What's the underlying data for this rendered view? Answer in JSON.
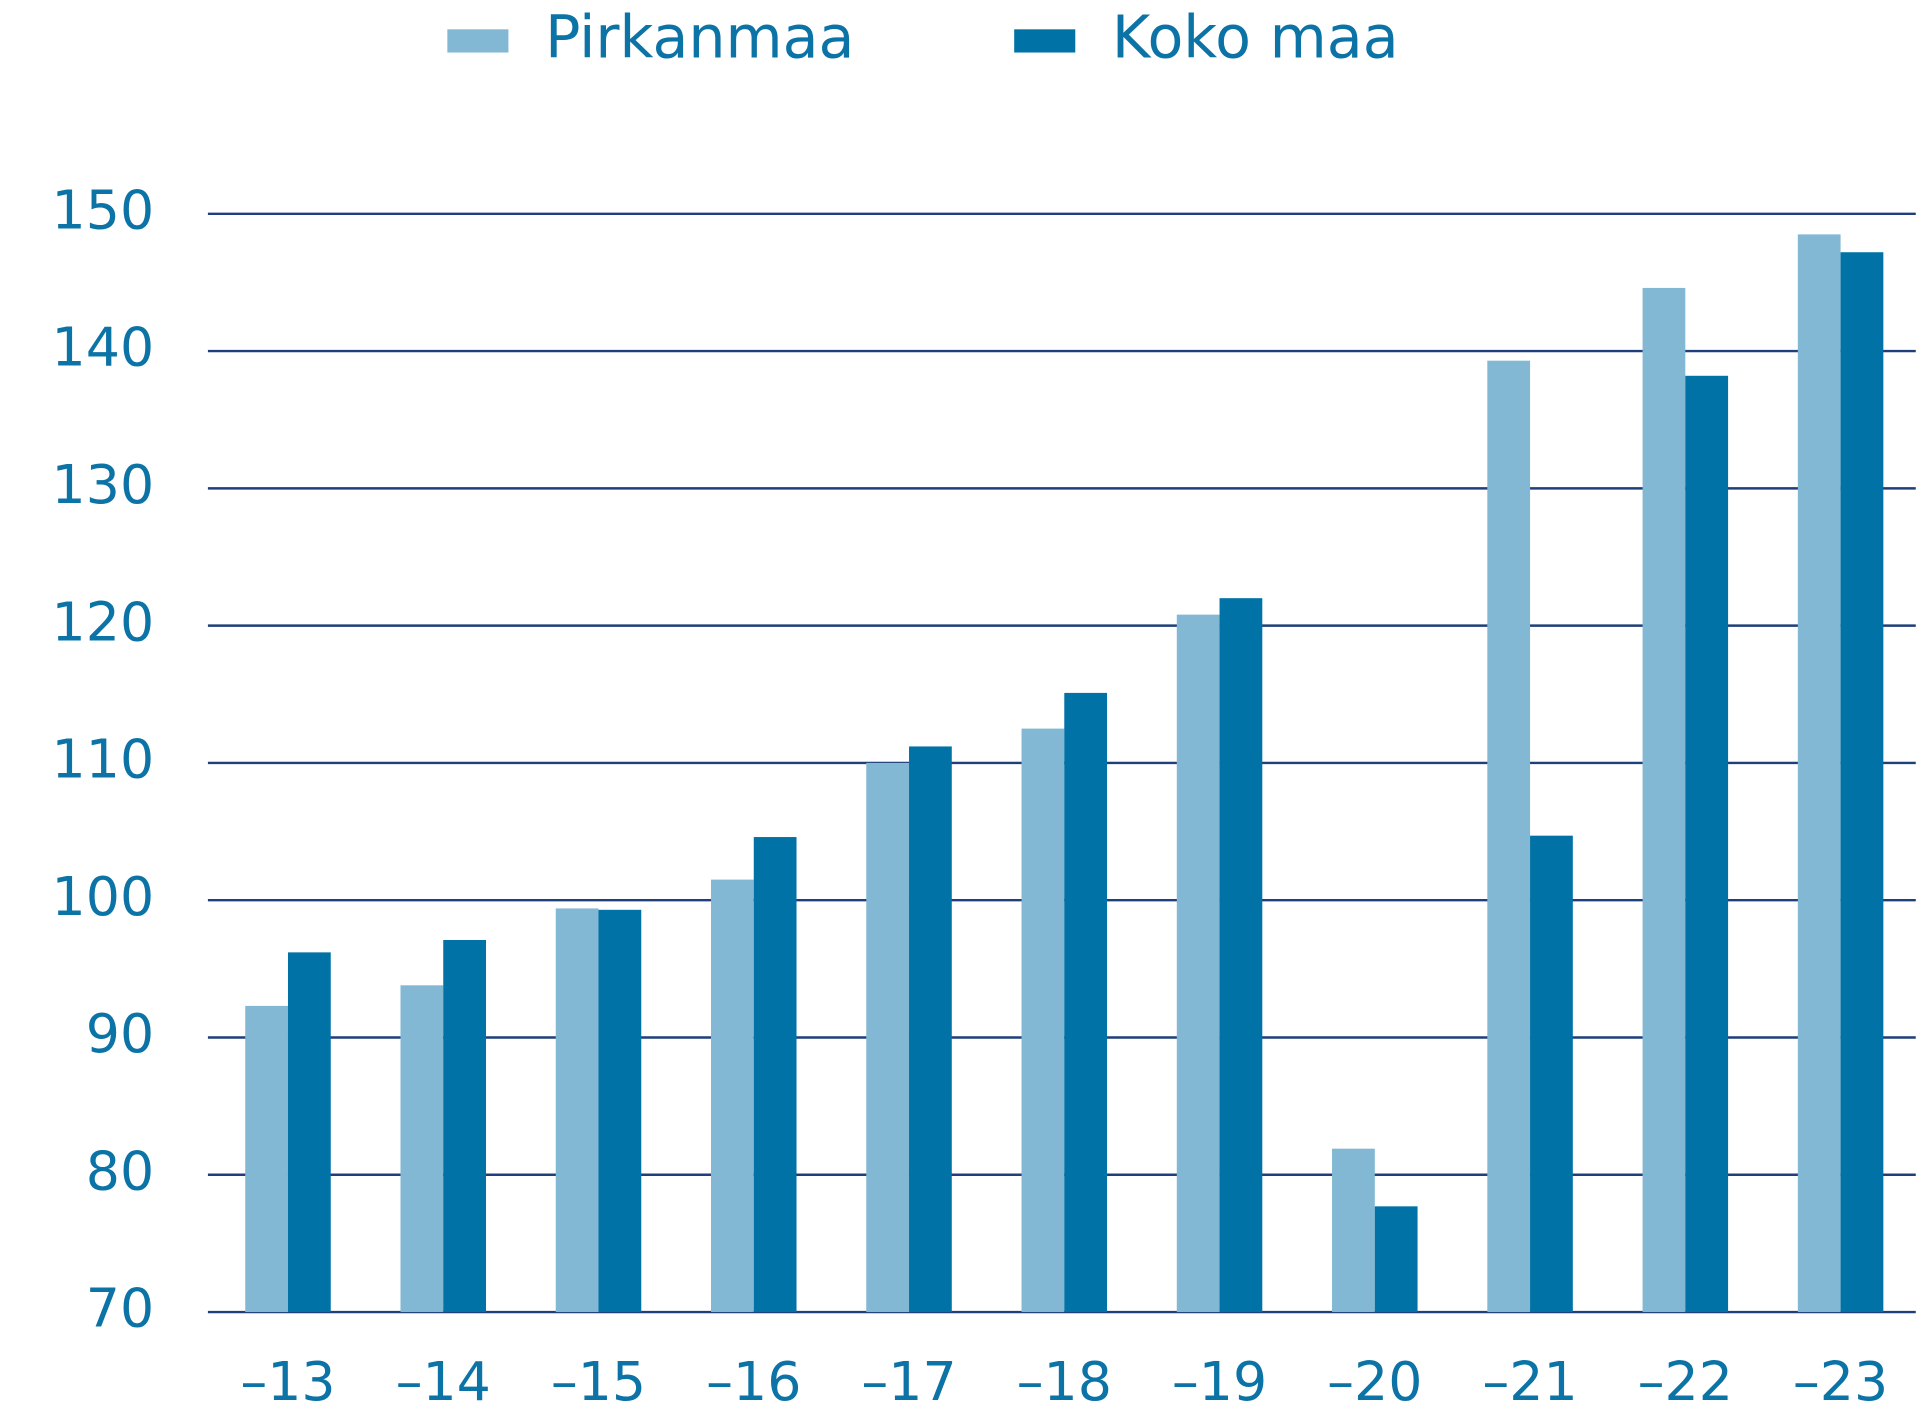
{
  "chart_data": {
    "type": "bar",
    "categories": [
      "–13",
      "–14",
      "–15",
      "–16",
      "–17",
      "–18",
      "–19",
      "–20",
      "–21",
      "–22",
      "–23"
    ],
    "series": [
      {
        "name": "Pirkanmaa",
        "color": "#82b8d3",
        "values": [
          92.3,
          93.8,
          99.4,
          101.5,
          110.0,
          112.5,
          120.8,
          81.9,
          139.3,
          144.6,
          148.5
        ]
      },
      {
        "name": "Koko maa",
        "color": "#0072a5",
        "values": [
          96.2,
          97.1,
          99.3,
          104.6,
          111.2,
          115.1,
          122.0,
          77.7,
          104.7,
          138.2,
          147.2
        ]
      }
    ],
    "ylim": [
      70,
      150
    ],
    "yticks": [
      70,
      80,
      90,
      100,
      110,
      120,
      130,
      140,
      150
    ],
    "grid": true,
    "legend": "top"
  }
}
